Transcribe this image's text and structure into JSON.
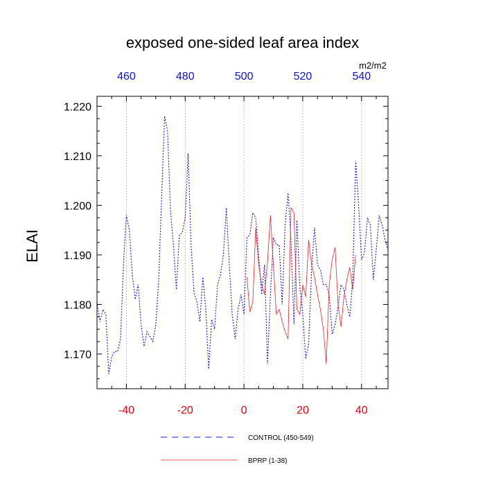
{
  "chart_data": {
    "type": "line",
    "title": "exposed one-sided leaf area index",
    "ylabel": "ELAI",
    "units": "m2/m2",
    "xlim": [
      -50,
      49
    ],
    "ylim": [
      1.163,
      1.222
    ],
    "yticks": [
      1.17,
      1.18,
      1.19,
      1.2,
      1.21,
      1.22
    ],
    "ytick_labels": [
      "1.170",
      "1.180",
      "1.190",
      "1.200",
      "1.210",
      "1.220"
    ],
    "xticks_bottom": [
      -40,
      -20,
      0,
      20,
      40
    ],
    "xtick_labels_bottom": [
      "-40",
      "-20",
      "0",
      "20",
      "40"
    ],
    "xticks_top": [
      -40,
      -20,
      0,
      20,
      40
    ],
    "xtick_labels_top": [
      "460",
      "480",
      "500",
      "520",
      "540"
    ],
    "vgrid": [
      -40,
      -20,
      0,
      20,
      40
    ],
    "colors": {
      "control": "#1414d8",
      "bprp": "#e8202a",
      "bottom_axis": "#e8000b",
      "top_axis": "#1010e0"
    },
    "series": [
      {
        "name": "CONTROL (450-549)",
        "style": "dashed",
        "x": [
          -50,
          -49,
          -48,
          -47,
          -46,
          -45,
          -44,
          -43,
          -42,
          -41,
          -40,
          -39,
          -38,
          -37,
          -36,
          -35,
          -34,
          -33,
          -32,
          -31,
          -30,
          -29,
          -28,
          -27,
          -26,
          -25,
          -24,
          -23,
          -22,
          -21,
          -20,
          -19,
          -18,
          -17,
          -16,
          -15,
          -14,
          -13,
          -12,
          -11,
          -10,
          -9,
          -8,
          -7,
          -6,
          -5,
          -4,
          -3,
          -2,
          -1,
          0,
          1,
          2,
          3,
          4,
          5,
          6,
          7,
          8,
          9,
          10,
          11,
          12,
          13,
          14,
          15,
          16,
          17,
          18,
          19,
          20,
          21,
          22,
          23,
          24,
          25,
          26,
          27,
          28,
          29,
          30,
          31,
          32,
          33,
          34,
          35,
          36,
          37,
          38,
          39,
          40,
          41,
          42,
          43,
          44,
          45,
          46,
          47,
          48,
          49
        ],
        "y": [
          1.1805,
          1.1765,
          1.179,
          1.178,
          1.166,
          1.1695,
          1.1705,
          1.1705,
          1.173,
          1.188,
          1.198,
          1.195,
          1.186,
          1.181,
          1.184,
          1.176,
          1.1715,
          1.1745,
          1.1735,
          1.1725,
          1.176,
          1.185,
          1.202,
          1.218,
          1.215,
          1.199,
          1.192,
          1.183,
          1.194,
          1.1945,
          1.1975,
          1.2105,
          1.192,
          1.1825,
          1.1805,
          1.1765,
          1.1855,
          1.179,
          1.167,
          1.177,
          1.175,
          1.184,
          1.186,
          1.19,
          1.1995,
          1.188,
          1.178,
          1.173,
          1.179,
          1.182,
          1.178,
          1.1935,
          1.194,
          1.1985,
          1.1975,
          1.19,
          1.182,
          1.188,
          1.168,
          1.182,
          1.1935,
          1.192,
          1.192,
          1.18,
          1.196,
          1.2025,
          1.193,
          1.176,
          1.197,
          1.1835,
          1.178,
          1.169,
          1.172,
          1.187,
          1.1955,
          1.188,
          1.187,
          1.184,
          1.184,
          1.182,
          1.174,
          1.176,
          1.1795,
          1.184,
          1.183,
          1.18,
          1.1775,
          1.185,
          1.209,
          1.2,
          1.189,
          1.1905,
          1.1975,
          1.196,
          1.185,
          1.191,
          1.198,
          1.196,
          1.193,
          1.191
        ]
      },
      {
        "name": "BPRP (1-38)",
        "style": "solid",
        "x": [
          1,
          2,
          3,
          4,
          5,
          6,
          7,
          8,
          9,
          10,
          11,
          12,
          13,
          14,
          15,
          16,
          17,
          18,
          19,
          20,
          21,
          22,
          23,
          24,
          25,
          26,
          27,
          28,
          29,
          30,
          31,
          32,
          33,
          34,
          35,
          36,
          37,
          38
        ],
        "y": [
          1.1855,
          1.1785,
          1.1805,
          1.1955,
          1.188,
          1.184,
          1.182,
          1.1885,
          1.198,
          1.188,
          1.178,
          1.179,
          1.1765,
          1.1745,
          1.173,
          1.1995,
          1.1985,
          1.179,
          1.178,
          1.184,
          1.1815,
          1.193,
          1.188,
          1.1855,
          1.182,
          1.179,
          1.175,
          1.168,
          1.184,
          1.189,
          1.1915,
          1.18,
          1.1755,
          1.1815,
          1.185,
          1.1875,
          1.183,
          1.19
        ]
      }
    ],
    "legend_position": "bottom"
  }
}
